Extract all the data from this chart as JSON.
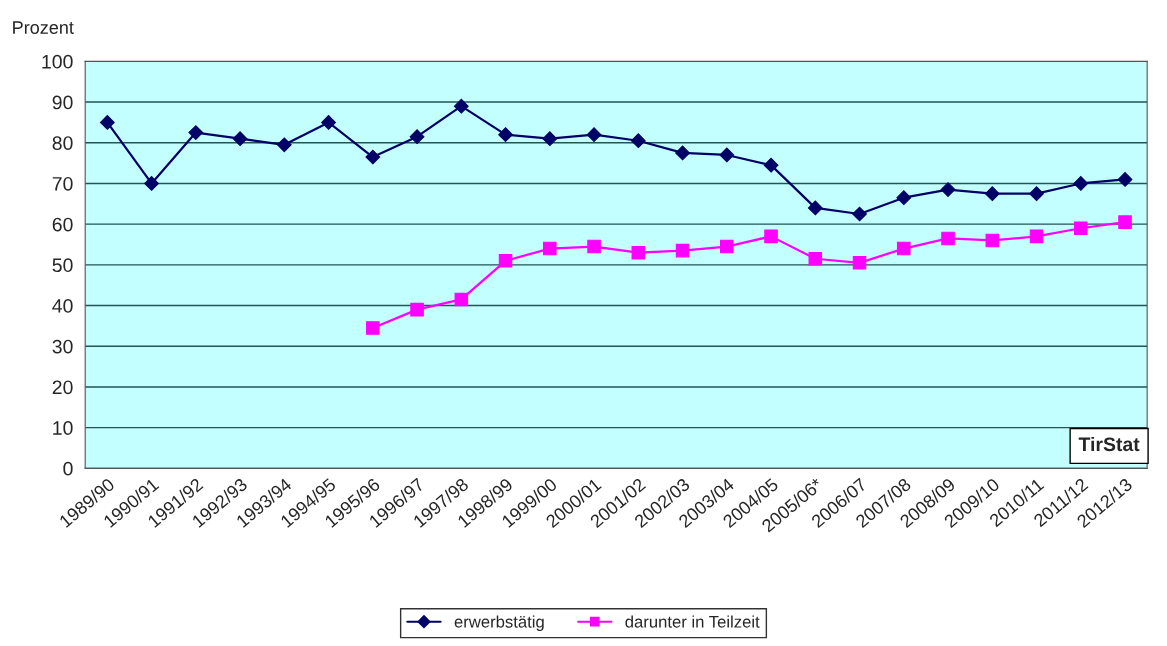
{
  "chart_data": {
    "type": "line",
    "ylabel": "Prozent",
    "categories": [
      "1989/90",
      "1990/91",
      "1991/92",
      "1992/93",
      "1993/94",
      "1994/95",
      "1995/96",
      "1996/97",
      "1997/98",
      "1998/99",
      "1999/00",
      "2000/01",
      "2001/02",
      "2002/03",
      "2003/04",
      "2004/05",
      "2005/06*",
      "2006/07",
      "2007/08",
      "2008/09",
      "2009/10",
      "2010/11",
      "2011/12",
      "2012/13"
    ],
    "series": [
      {
        "name": "erwerbstätig",
        "color": "#000066",
        "marker": "diamond",
        "values": [
          85,
          70,
          82.5,
          81,
          79.5,
          85,
          76.5,
          81.5,
          89,
          82,
          81,
          82,
          80.5,
          77.5,
          77,
          74.5,
          64,
          62.5,
          66.5,
          68.5,
          67.5,
          67.5,
          70,
          71
        ]
      },
      {
        "name": "darunter in Teilzeit",
        "color": "#ff00ff",
        "marker": "square",
        "values": [
          null,
          null,
          null,
          null,
          null,
          null,
          34.5,
          39,
          41.5,
          51,
          54,
          54.5,
          53,
          53.5,
          54.5,
          57,
          51.5,
          50.5,
          54,
          56.5,
          56,
          57,
          59,
          60.5
        ]
      }
    ],
    "ylim": [
      0,
      100
    ],
    "yticks": [
      0,
      10,
      20,
      30,
      40,
      50,
      60,
      70,
      80,
      90,
      100
    ],
    "grid": "y",
    "legend": "bottom",
    "line_style": "solid",
    "annotations": [
      "TirStat"
    ]
  }
}
